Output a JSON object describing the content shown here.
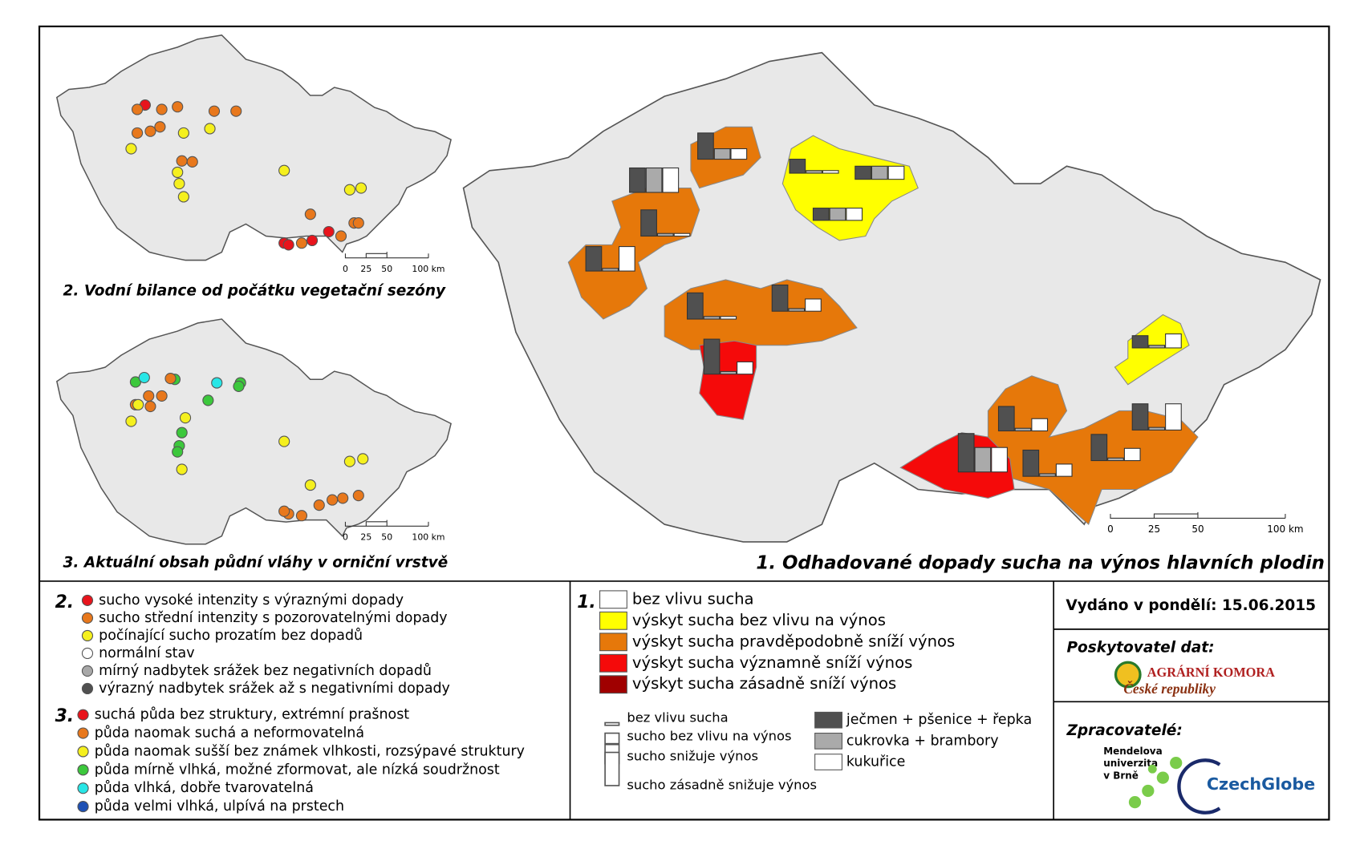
{
  "maps": [
    {
      "title": "1. Odhadované dopady sucha na výnos hlavních plodin",
      "scale": [
        "0",
        "25",
        "50",
        "100 km"
      ]
    },
    {
      "title": "2. Vodní bilance od počátku vegetační sezóny",
      "scale": [
        "0",
        "25",
        "50",
        "100 km"
      ]
    },
    {
      "title": "3. Aktuální obsah půdní vláhy v orniční vrstvě",
      "scale": [
        "0",
        "25",
        "50",
        "100 km"
      ]
    }
  ],
  "legend2": {
    "number": "2.",
    "items": [
      {
        "label": "sucho vysoké intenzity s výraznými dopady",
        "color": "#e8141c"
      },
      {
        "label": "sucho střední intenzity s pozorovatelnými dopady",
        "color": "#e8781c"
      },
      {
        "label": "počínající sucho prozatím bez dopadů",
        "color": "#f5f01e"
      },
      {
        "label": "normální stav",
        "color": "#ffffff"
      },
      {
        "label": "mírný nadbytek srážek bez negativních dopadů",
        "color": "#a8a8a8"
      },
      {
        "label": "výrazný nadbytek srážek až s negativními dopady",
        "color": "#505050"
      }
    ]
  },
  "legend3": {
    "number": "3.",
    "items": [
      {
        "label": "suchá půda bez struktury, extrémní prašnost",
        "color": "#e8141c"
      },
      {
        "label": "půda naomak suchá a neformovatelná",
        "color": "#e8781c"
      },
      {
        "label": "půda naomak sušší bez známek vlhkosti, rozsýpavé struktury",
        "color": "#f5f01e"
      },
      {
        "label": "půda mírně vlhká, možné zformovat, ale nízká soudržnost",
        "color": "#3cc83c"
      },
      {
        "label": "půda vlhká, dobře tvarovatelná",
        "color": "#28e6e6"
      },
      {
        "label": "půda velmi vlhká, ulpívá na prstech",
        "color": "#1e50b4"
      }
    ]
  },
  "legend1": {
    "number": "1.",
    "regions": [
      {
        "label": "bez vlivu sucha",
        "color": "#ffffff"
      },
      {
        "label": "výskyt sucha bez vlivu na výnos",
        "color": "#ffff00"
      },
      {
        "label": "výskyt sucha pravděpodobně sníží výnos",
        "color": "#e6780a"
      },
      {
        "label": "výskyt sucha významně sníží výnos",
        "color": "#f50a0a"
      },
      {
        "label": "výskyt sucha zásadně sníží výnos",
        "color": "#a00000"
      }
    ],
    "bars": [
      "bez vlivu sucha",
      "sucho bez vlivu na výnos",
      "sucho snižuje výnos",
      "sucho zásadně snižuje výnos"
    ],
    "crops": [
      {
        "label": "ječmen + pšenice + řepka",
        "color": "#505050"
      },
      {
        "label": "cukrovka + brambory",
        "color": "#aaaaaa"
      },
      {
        "label": "kukuřice",
        "color": "#ffffff"
      }
    ]
  },
  "issued": "Vydáno v pondělí: 15.06.2015",
  "provider": {
    "heading": "Poskytovatel dat:",
    "logo_line1": "AGRÁRNÍ KOMORA",
    "logo_line2": "České republiky"
  },
  "processors": {
    "heading": "Zpracovatelé:",
    "mendel": [
      "Mendelova",
      "univerzita",
      "v Brně"
    ],
    "czechglobe": "CzechGlobe"
  }
}
